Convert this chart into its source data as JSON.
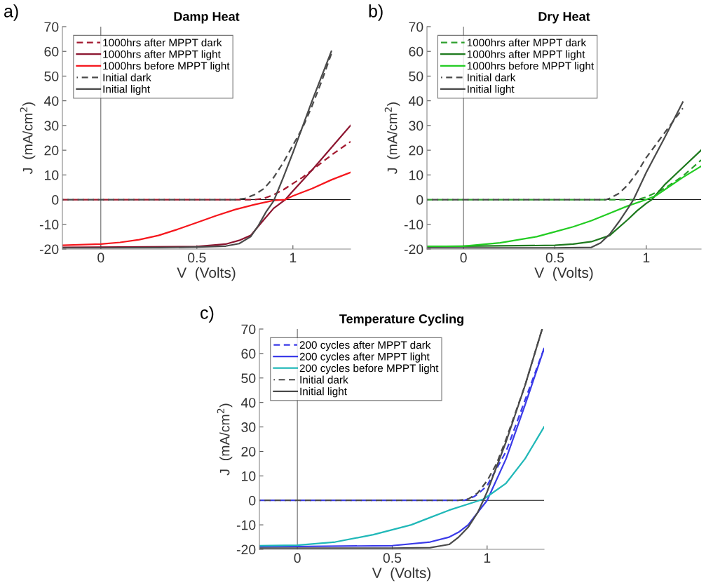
{
  "chart_data": [
    {
      "type": "line",
      "title": "Damp Heat",
      "xlabel": "V  (Volts)",
      "ylabel": "J  (mA/cm$^{2}$)",
      "annotations": [
        "a)"
      ],
      "xlim": [
        -0.2,
        1.3
      ],
      "ylim": [
        -20,
        70
      ],
      "xticks": [
        0,
        0.5,
        1
      ],
      "yticks": [
        -20,
        -10,
        0,
        10,
        20,
        30,
        40,
        50,
        60,
        70
      ],
      "legend": "top left",
      "grid": false,
      "marker": "none",
      "ref_lines": [
        {
          "axis": "x",
          "value": 0,
          "color": "#555555"
        },
        {
          "axis": "y",
          "value": 0,
          "color": "#000000"
        }
      ],
      "series": [
        {
          "name": "1000hrs after MPPT dark",
          "color": "#a3192f",
          "line_style": "dashed",
          "x": [
            -0.2,
            0.5,
            0.8,
            0.85,
            0.9,
            0.95,
            1.0,
            1.05,
            1.1,
            1.2,
            1.3
          ],
          "values": [
            0,
            0,
            0,
            0.5,
            2,
            4,
            6.5,
            9,
            12,
            18,
            23.5
          ]
        },
        {
          "name": "1000hrs after MPPT light",
          "color": "#8c1530",
          "line_style": "solid",
          "x": [
            -0.2,
            0.5,
            0.65,
            0.72,
            0.78,
            0.85,
            0.9,
            0.96,
            1.0,
            1.1,
            1.2,
            1.3
          ],
          "values": [
            -19.3,
            -19,
            -18,
            -16.5,
            -14.5,
            -8,
            -3.5,
            0,
            3.5,
            12,
            21,
            30
          ]
        },
        {
          "name": "1000hrs before MPPT light",
          "color": "#f5161c",
          "line_style": "solid",
          "x": [
            -0.2,
            0,
            0.1,
            0.2,
            0.3,
            0.4,
            0.5,
            0.6,
            0.7,
            0.8,
            0.9,
            0.96,
            1.0,
            1.1,
            1.2,
            1.3
          ],
          "values": [
            -18.5,
            -18,
            -17.3,
            -16.2,
            -14.5,
            -12,
            -9.3,
            -6.5,
            -4,
            -2,
            -0.3,
            0,
            1.5,
            4.5,
            8,
            11
          ]
        },
        {
          "name": "Initial dark",
          "color": "#4a4a4a",
          "line_style": "dashed",
          "x": [
            -0.2,
            0.7,
            0.75,
            0.8,
            0.85,
            0.9,
            0.95,
            1.0,
            1.05,
            1.1,
            1.15,
            1.2
          ],
          "values": [
            0,
            0,
            0.5,
            2,
            4.5,
            9,
            15,
            22,
            29,
            38,
            48,
            59
          ]
        },
        {
          "name": "Initial light",
          "color": "#4a4a4a",
          "line_style": "solid",
          "x": [
            -0.2,
            0,
            0.3,
            0.5,
            0.65,
            0.72,
            0.78,
            0.82,
            0.86,
            0.9,
            0.95,
            1.0,
            1.1,
            1.2
          ],
          "values": [
            -19.5,
            -19.5,
            -19.4,
            -19.2,
            -18.8,
            -17.8,
            -15,
            -10.5,
            -5,
            -0.5,
            9,
            19,
            40,
            60
          ]
        }
      ]
    },
    {
      "type": "line",
      "title": "Dry Heat",
      "xlabel": "V  (Volts)",
      "ylabel": "J  (mA/cm$^{2}$)",
      "annotations": [
        "b)"
      ],
      "xlim": [
        -0.2,
        1.3
      ],
      "ylim": [
        -20,
        70
      ],
      "xticks": [
        0,
        0.5,
        1
      ],
      "yticks": [
        -20,
        -10,
        0,
        10,
        20,
        30,
        40,
        50,
        60,
        70
      ],
      "legend": "top left",
      "grid": false,
      "marker": "none",
      "ref_lines": [
        {
          "axis": "x",
          "value": 0,
          "color": "#555555"
        },
        {
          "axis": "y",
          "value": 0,
          "color": "#000000"
        }
      ],
      "series": [
        {
          "name": "1000hrs after MPPT dark",
          "color": "#2ca02c",
          "line_style": "dashed",
          "x": [
            -0.2,
            0.5,
            0.95,
            1.0,
            1.1,
            1.2,
            1.3
          ],
          "values": [
            0,
            0,
            0,
            1,
            4.5,
            9.5,
            16
          ]
        },
        {
          "name": "1000hrs after MPPT light",
          "color": "#1e7a1e",
          "line_style": "solid",
          "x": [
            -0.2,
            0.5,
            0.6,
            0.7,
            0.8,
            0.9,
            0.95,
            1.0,
            1.03,
            1.1,
            1.2,
            1.3
          ],
          "values": [
            -19,
            -18.5,
            -18,
            -17,
            -14.5,
            -8,
            -4.5,
            -1.5,
            0,
            6,
            13,
            20
          ]
        },
        {
          "name": "1000hrs before MPPT light",
          "color": "#22cc22",
          "line_style": "solid",
          "x": [
            -0.2,
            0,
            0.2,
            0.4,
            0.5,
            0.6,
            0.7,
            0.8,
            0.9,
            1.0,
            1.05,
            1.1,
            1.2,
            1.3
          ],
          "values": [
            -19,
            -18.8,
            -17.5,
            -15,
            -13,
            -11,
            -8.5,
            -5.5,
            -2.5,
            0,
            1.5,
            4,
            9,
            13.5
          ]
        },
        {
          "name": "Initial dark",
          "color": "#4a4a4a",
          "line_style": "dashed",
          "x": [
            -0.2,
            0.78,
            0.8,
            0.85,
            0.9,
            0.95,
            1.0,
            1.1,
            1.2
          ],
          "values": [
            0,
            0,
            0.5,
            2.5,
            6,
            11,
            17,
            27,
            37
          ]
        },
        {
          "name": "Initial light",
          "color": "#4a4a4a",
          "line_style": "solid",
          "x": [
            -0.2,
            0.5,
            0.7,
            0.75,
            0.8,
            0.85,
            0.9,
            0.93,
            1.0,
            1.1,
            1.2
          ],
          "values": [
            -19.5,
            -19.5,
            -19.3,
            -17.5,
            -14,
            -9,
            -3.5,
            0,
            11,
            25,
            39.5
          ]
        }
      ]
    },
    {
      "type": "line",
      "title": "Temperature Cycling",
      "xlabel": "V  (Volts)",
      "ylabel": "J  (mA/cm$^{2}$)",
      "annotations": [
        "c)"
      ],
      "xlim": [
        -0.2,
        1.3
      ],
      "ylim": [
        -20,
        70
      ],
      "xticks": [
        0,
        0.5,
        1
      ],
      "yticks": [
        -20,
        -10,
        0,
        10,
        20,
        30,
        40,
        50,
        60,
        70
      ],
      "legend": "top left",
      "grid": false,
      "marker": "none",
      "ref_lines": [
        {
          "axis": "x",
          "value": 0,
          "color": "#555555"
        },
        {
          "axis": "y",
          "value": 0,
          "color": "#000000"
        }
      ],
      "series": [
        {
          "name": "200 cycles after MPPT dark",
          "color": "#3a3ae8",
          "line_style": "dashed",
          "x": [
            -0.2,
            0.5,
            0.88,
            0.93,
            0.95,
            1.0,
            1.1,
            1.2,
            1.3
          ],
          "values": [
            0,
            0,
            0,
            1.5,
            2.5,
            6,
            20,
            41,
            62
          ]
        },
        {
          "name": "200 cycles after MPPT light",
          "color": "#3a3ae8",
          "line_style": "solid",
          "x": [
            -0.2,
            0.5,
            0.7,
            0.8,
            0.85,
            0.9,
            0.95,
            1.0,
            1.1,
            1.2,
            1.3
          ],
          "values": [
            -19,
            -18.5,
            -17,
            -15,
            -13,
            -10,
            -5,
            0,
            17,
            39,
            62
          ]
        },
        {
          "name": "200 cycles before MPPT light",
          "color": "#20b8b8",
          "line_style": "solid",
          "x": [
            -0.2,
            0,
            0.2,
            0.4,
            0.5,
            0.6,
            0.7,
            0.8,
            0.9,
            0.98,
            1.0,
            1.1,
            1.2,
            1.3
          ],
          "values": [
            -18.5,
            -18.3,
            -17,
            -14,
            -12,
            -10,
            -7,
            -4,
            -1.5,
            0.5,
            1.5,
            7,
            17,
            30
          ]
        },
        {
          "name": "Initial dark",
          "color": "#4a4a4a",
          "line_style": "dashed",
          "x": [
            -0.2,
            0.85,
            0.9,
            0.95,
            1.0,
            1.05,
            1.1,
            1.2,
            1.29
          ],
          "values": [
            0,
            0,
            0.5,
            3,
            8,
            15,
            25,
            47,
            70
          ]
        },
        {
          "name": "Initial light",
          "color": "#4a4a4a",
          "line_style": "solid",
          "x": [
            -0.2,
            0.5,
            0.7,
            0.8,
            0.85,
            0.9,
            0.95,
            0.98,
            1.0,
            1.1,
            1.2,
            1.29
          ],
          "values": [
            -19.5,
            -19.5,
            -19.3,
            -18,
            -15,
            -11,
            -5,
            0,
            3.5,
            24,
            47,
            70
          ]
        }
      ]
    }
  ]
}
